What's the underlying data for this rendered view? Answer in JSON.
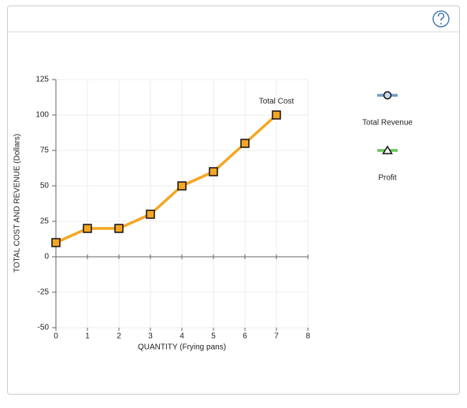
{
  "chart_data": {
    "type": "line",
    "y_label": "TOTAL COST AND REVENUE (Dollars)",
    "x_label": "QUANTITY (Frying pans)",
    "x": [
      0,
      1,
      2,
      3,
      4,
      5,
      6,
      7
    ],
    "series": [
      {
        "name": "Total Cost",
        "color": "#f5a623",
        "marker": "square",
        "values": [
          10,
          20,
          20,
          30,
          50,
          60,
          80,
          100
        ]
      },
      {
        "name": "Total Revenue",
        "color": "#6f9dc9",
        "marker": "circle",
        "values": [
          null,
          null,
          null,
          null,
          null,
          null,
          null,
          null
        ]
      },
      {
        "name": "Profit",
        "color": "#6dc25a",
        "marker": "triangle",
        "values": [
          null,
          null,
          null,
          null,
          null,
          null,
          null,
          null
        ]
      }
    ],
    "xlim": [
      0,
      8
    ],
    "xticks": [
      0,
      1,
      2,
      3,
      4,
      5,
      6,
      7,
      8
    ],
    "ylim": [
      -50,
      125
    ],
    "yticks": [
      -50,
      -25,
      0,
      25,
      50,
      75,
      100,
      125
    ],
    "grid": true
  }
}
